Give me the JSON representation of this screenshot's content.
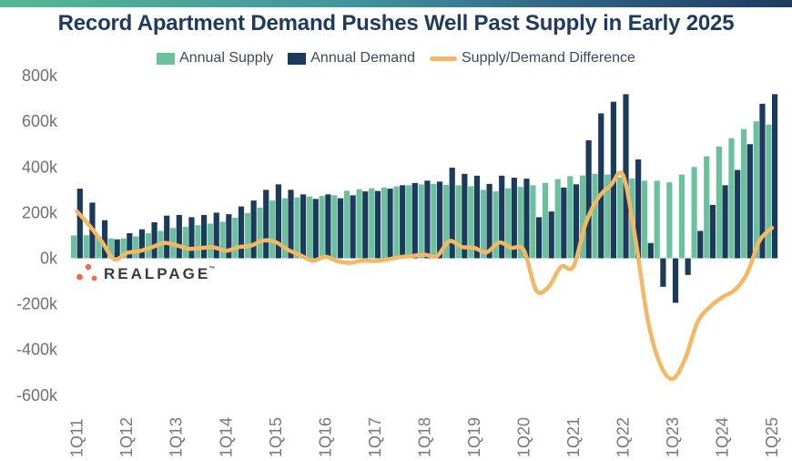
{
  "title": "Record Apartment Demand Pushes Well Past Supply in Early 2025",
  "legend": [
    {
      "label": "Annual Supply",
      "color": "#6cc09e",
      "swatch": "square"
    },
    {
      "label": "Annual Demand",
      "color": "#1b3a5c",
      "swatch": "square"
    },
    {
      "label": "Supply/Demand Difference",
      "color": "#f4b763",
      "swatch": "line"
    }
  ],
  "logo": {
    "text": "REALPAGE",
    "tm_mark": "™",
    "dot_color": "#ec6a4d",
    "text_color": "#3a3a3c"
  },
  "colors": {
    "title": "#1e3a5c",
    "axis_labels": "#6f7174",
    "banner_gradient": [
      "#56b794",
      "#43929e",
      "#1e3a5f"
    ]
  },
  "chart_data": {
    "type": "bar",
    "note": "grouped quarterly bars (values in thousands of apartment units, rolling annual) plus difference line",
    "x": [
      "1Q11",
      "2Q11",
      "3Q11",
      "4Q11",
      "1Q12",
      "2Q12",
      "3Q12",
      "4Q12",
      "1Q13",
      "2Q13",
      "3Q13",
      "4Q13",
      "1Q14",
      "2Q14",
      "3Q14",
      "4Q14",
      "1Q15",
      "2Q15",
      "3Q15",
      "4Q15",
      "1Q16",
      "2Q16",
      "3Q16",
      "4Q16",
      "1Q17",
      "2Q17",
      "3Q17",
      "4Q17",
      "1Q18",
      "2Q18",
      "3Q18",
      "4Q18",
      "1Q19",
      "2Q19",
      "3Q19",
      "4Q19",
      "1Q20",
      "2Q20",
      "3Q20",
      "4Q20",
      "1Q21",
      "2Q21",
      "3Q21",
      "4Q21",
      "1Q22",
      "2Q22",
      "3Q22",
      "4Q22",
      "1Q23",
      "2Q23",
      "3Q23",
      "4Q23",
      "1Q24",
      "2Q24",
      "3Q24",
      "4Q24",
      "1Q25"
    ],
    "x_tick_labels": [
      "1Q11",
      "1Q12",
      "1Q13",
      "1Q14",
      "1Q15",
      "1Q16",
      "1Q17",
      "1Q18",
      "1Q19",
      "1Q20",
      "1Q21",
      "1Q22",
      "1Q23",
      "1Q24",
      "1Q25"
    ],
    "series": [
      {
        "name": "Annual Supply",
        "type": "bar",
        "color": "#6cc09e",
        "values": [
          100,
          101,
          95,
          87,
          87,
          96,
          110,
          120,
          133,
          138,
          145,
          152,
          160,
          178,
          198,
          222,
          253,
          263,
          267,
          271,
          273,
          276,
          296,
          303,
          307,
          310,
          315,
          320,
          324,
          326,
          322,
          320,
          316,
          300,
          293,
          307,
          313,
          320,
          330,
          347,
          360,
          363,
          370,
          367,
          355,
          350,
          340,
          340,
          333,
          367,
          400,
          447,
          490,
          526,
          566,
          600,
          586
        ]
      },
      {
        "name": "Annual Demand",
        "type": "bar",
        "color": "#1b3a5c",
        "values": [
          305,
          244,
          167,
          83,
          110,
          127,
          158,
          187,
          190,
          180,
          190,
          200,
          193,
          227,
          253,
          300,
          324,
          300,
          280,
          260,
          280,
          263,
          276,
          293,
          295,
          305,
          320,
          330,
          340,
          336,
          397,
          370,
          362,
          326,
          362,
          353,
          349,
          180,
          205,
          310,
          324,
          517,
          635,
          686,
          719,
          433,
          67,
          -125,
          -195,
          -73,
          120,
          234,
          320,
          387,
          500,
          677,
          719
        ]
      },
      {
        "name": "Supply/Demand Difference",
        "type": "line",
        "color": "#f4b763",
        "values": [
          205,
          143,
          72,
          -4,
          23,
          31,
          48,
          67,
          57,
          42,
          45,
          48,
          33,
          49,
          55,
          78,
          71,
          37,
          13,
          -11,
          7,
          -13,
          -20,
          -10,
          -12,
          -5,
          5,
          10,
          16,
          10,
          75,
          50,
          46,
          26,
          69,
          46,
          36,
          -140,
          -125,
          -37,
          -36,
          154,
          265,
          319,
          364,
          83,
          -273,
          -465,
          -528,
          -440,
          -280,
          -213,
          -170,
          -139,
          -66,
          77,
          133
        ]
      }
    ],
    "y_ticks": [
      {
        "value": 800,
        "label": "800k"
      },
      {
        "value": 600,
        "label": "600k"
      },
      {
        "value": 400,
        "label": "400k"
      },
      {
        "value": 200,
        "label": "200k"
      },
      {
        "value": 0,
        "label": "0k"
      },
      {
        "value": -200,
        "label": "-200k"
      },
      {
        "value": -400,
        "label": "-400k"
      },
      {
        "value": -600,
        "label": "-600k"
      }
    ],
    "ylim": [
      -600,
      800
    ],
    "unit": "thousands of units",
    "grid": false,
    "legend_position": "top"
  }
}
